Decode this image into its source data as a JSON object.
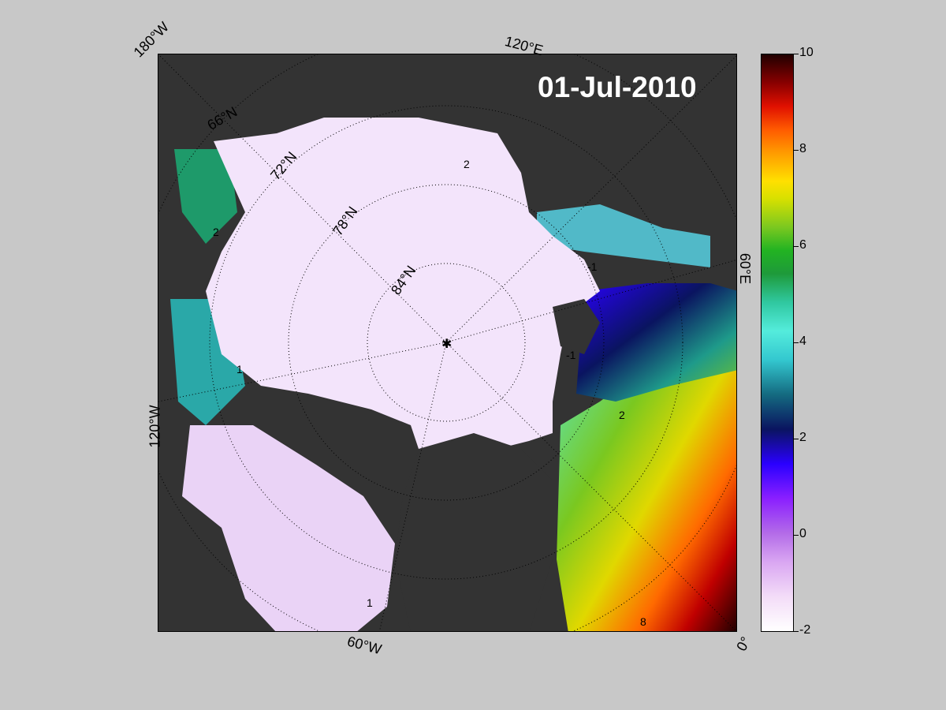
{
  "map": {
    "title": "01-Jul-2010",
    "longitude_labels": {
      "top_left": "180°W",
      "top": "120°E",
      "right": "60°E",
      "left": "120°W",
      "bottom": "60°W",
      "bottom_right": "0°"
    },
    "latitude_labels": [
      "66°N",
      "72°N",
      "78°N",
      "84°N"
    ],
    "contour_labels": [
      "-1",
      "2",
      "2",
      "1",
      "-1",
      "2",
      "1",
      "8"
    ],
    "colors": {
      "land": "#333333",
      "land_mask": "#7a7a7a",
      "ice": "#f3e4fb",
      "frame_background": "#c8c8c8"
    }
  },
  "colorbar": {
    "min": -2,
    "max": 10,
    "ticks": [
      "10",
      "8",
      "6",
      "4",
      "2",
      "0",
      "-2"
    ]
  }
}
